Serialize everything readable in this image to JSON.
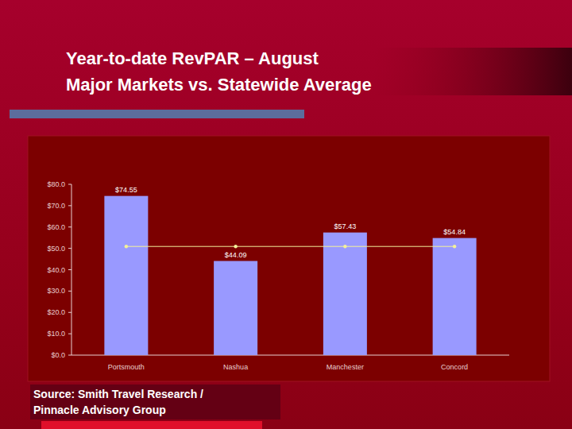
{
  "chart_data": {
    "type": "bar",
    "title": "Year-to-date RevPAR – August",
    "subtitle": "Major Markets vs. Statewide Average",
    "source": [
      "Source: Smith Travel Research /",
      "Pinnacle Advisory Group"
    ],
    "categories": [
      "Portsmouth",
      "Nashua",
      "Manchester",
      "Concord"
    ],
    "series": [
      {
        "type": "bar",
        "color": "#9999ff",
        "values": [
          74.55,
          44.09,
          57.43,
          54.84
        ],
        "value_labels": [
          "$74.55",
          "$44.09",
          "$57.43",
          "$54.84"
        ]
      },
      {
        "type": "line",
        "color": "#f2f09a",
        "marker": "circle",
        "line_style": "solid",
        "values": [
          50.9,
          50.9,
          50.9,
          50.9
        ]
      }
    ],
    "ylim": [
      0,
      80
    ],
    "yticks": [
      {
        "value": 0,
        "label": "$0.0"
      },
      {
        "value": 10,
        "label": "$10.0"
      },
      {
        "value": 20,
        "label": "$20.0"
      },
      {
        "value": 30,
        "label": "$30.0"
      },
      {
        "value": 40,
        "label": "$40.0"
      },
      {
        "value": 50,
        "label": "$50.0"
      },
      {
        "value": 60,
        "label": "$60.0"
      },
      {
        "value": 70,
        "label": "$70.0"
      },
      {
        "value": 80,
        "label": "$80.0"
      }
    ],
    "grid": false,
    "data_labels": true
  }
}
